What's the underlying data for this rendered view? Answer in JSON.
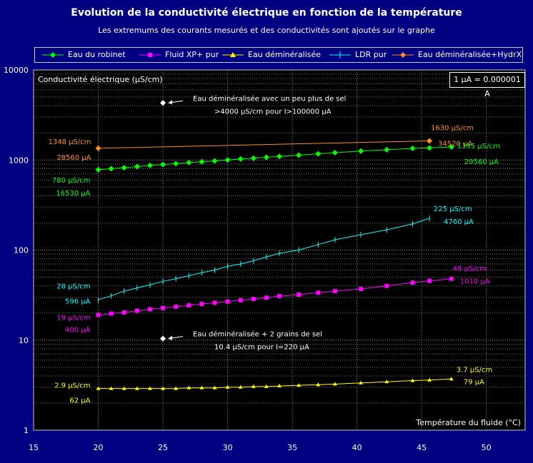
{
  "chart_data": {
    "type": "line",
    "title": "Evolution de la conductivité électrique en fonction de la température",
    "subtitle": "Les extremums des courants mesurés et des conductivités sont ajoutés sur le graphe",
    "xlabel": "Température du fluide (°C)",
    "ylabel": "Conductivité électrique (µS/cm)",
    "xlim": [
      15,
      53
    ],
    "ylim": [
      1,
      10000
    ],
    "y_scale": "log",
    "grid": true,
    "legend_position": "top",
    "x_ticks": [
      "15",
      "20",
      "25",
      "30",
      "35",
      "40",
      "45",
      "50"
    ],
    "y_ticks": [
      "1",
      "10",
      "100",
      "1000",
      "10000"
    ],
    "unit_note": "1 µA = 0.000001 A",
    "series": [
      {
        "name": "Eau du robinet",
        "color": "#00ff00",
        "marker": "diamond",
        "x": [
          20,
          21,
          22,
          23,
          24,
          25,
          26,
          27,
          28,
          29,
          30,
          31,
          32,
          33,
          34,
          35.5,
          37,
          38.3,
          40.3,
          42.3,
          44.3,
          45.6,
          47.3
        ],
        "y": [
          780,
          800,
          820,
          845,
          870,
          890,
          910,
          935,
          955,
          975,
          1000,
          1025,
          1045,
          1070,
          1095,
          1130,
          1170,
          1205,
          1255,
          1300,
          1345,
          1360,
          1395
        ]
      },
      {
        "name": "Fluid XP+ pur",
        "color": "#ff00ff",
        "marker": "square",
        "x": [
          20,
          21,
          22,
          23,
          24,
          25,
          26,
          27,
          28,
          29,
          30,
          31,
          32,
          33,
          34,
          35.5,
          37,
          38.3,
          40.3,
          42.3,
          44.3,
          45.6,
          47.3
        ],
        "y": [
          19,
          19.7,
          20.3,
          21.2,
          22,
          22.7,
          23.5,
          24.3,
          25.2,
          26,
          26.8,
          27.7,
          28.6,
          29.6,
          30.8,
          32,
          33.6,
          35,
          37,
          40,
          43.5,
          45.5,
          48
        ]
      },
      {
        "name": "Eau déminéralisée",
        "color": "#ffff00",
        "marker": "triangle",
        "x": [
          20,
          21,
          22,
          23,
          24,
          25,
          26,
          27,
          28,
          29,
          30,
          31,
          32,
          33,
          34,
          35.5,
          37,
          38.3,
          40.3,
          42.3,
          44.3,
          45.6,
          47.3
        ],
        "y": [
          2.9,
          2.9,
          2.9,
          2.9,
          2.9,
          2.9,
          2.9,
          2.95,
          2.95,
          2.95,
          3.0,
          3.0,
          3.05,
          3.05,
          3.1,
          3.15,
          3.2,
          3.25,
          3.35,
          3.45,
          3.55,
          3.6,
          3.7
        ]
      },
      {
        "name": "LDR pur",
        "color": "#00ffff",
        "marker": "cross",
        "x": [
          20,
          21,
          22,
          23,
          24,
          25,
          26,
          27,
          28,
          29,
          30,
          31,
          32,
          33,
          34,
          35.5,
          37,
          38.3,
          40.3,
          42.3,
          44.3,
          45.6
        ],
        "y": [
          28,
          31,
          35,
          38,
          41,
          45,
          48,
          52,
          56,
          60,
          66,
          70,
          76,
          84,
          92,
          100,
          115,
          130,
          148,
          168,
          195,
          225
        ]
      },
      {
        "name": "Eau déminéralisée+HydrX",
        "color": "#ff9020",
        "marker": "diamond",
        "x": [
          20,
          45.6
        ],
        "y": [
          1348,
          1630
        ]
      }
    ],
    "points": [
      {
        "x": 25,
        "y": 4300,
        "label_1": "Eau déminéralisée avec un peu plus de sel",
        "label_2": ">4000 µS/cm pour I>100000 µA"
      },
      {
        "x": 25,
        "y": 10.4,
        "label_1": "Eau déminéralisée + 2 grains de sel",
        "label_2": "10.4 µS/cm pour I=220 µA"
      }
    ],
    "annotations": [
      {
        "series": 4,
        "side": "start",
        "value": "1348 µS/cm",
        "current": "28560 µA"
      },
      {
        "series": 4,
        "side": "end",
        "value": "1630 µS/cm",
        "current": "34520 µA"
      },
      {
        "series": 0,
        "side": "start",
        "value": "780 µS/cm",
        "current": "16530 µA"
      },
      {
        "series": 0,
        "side": "end",
        "value": "1395 µS/cm",
        "current": "29560 µA"
      },
      {
        "series": 3,
        "side": "start",
        "value": "28 µS/cm",
        "current": "596 µA"
      },
      {
        "series": 3,
        "side": "end",
        "value": "225 µS/cm",
        "current": "4760 µA"
      },
      {
        "series": 1,
        "side": "start",
        "value": "19 µS/cm",
        "current": "400 µA"
      },
      {
        "series": 1,
        "side": "end",
        "value": "48 µS/cm",
        "current": "1010 µA"
      },
      {
        "series": 2,
        "side": "start",
        "value": "2.9 µS/cm",
        "current": "62 µA"
      },
      {
        "series": 2,
        "side": "end",
        "value": "3.7 µS/cm",
        "current": "79 µA"
      }
    ]
  }
}
